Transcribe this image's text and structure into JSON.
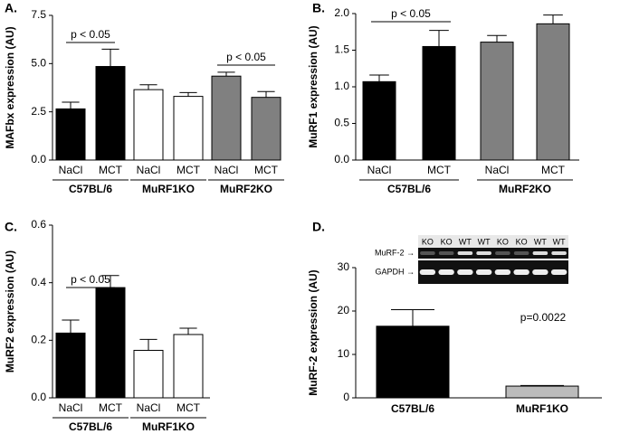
{
  "chart_data": [
    {
      "type": "bar",
      "title": "A.",
      "ylabel": "MAFbx expression (AU)",
      "ylim": [
        0,
        7.5
      ],
      "yticks": [
        {
          "value": 0,
          "label": "0.0"
        },
        2.5,
        {
          "value": 5,
          "label": "5.0"
        },
        7.5
      ],
      "groups": [
        {
          "name": "C57BL/6",
          "color": "#000000",
          "categories": [
            "NaCl",
            "MCT"
          ],
          "values": [
            2.65,
            4.85
          ],
          "errors": [
            0.35,
            0.9
          ]
        },
        {
          "name": "MuRF1KO",
          "color": "#ffffff",
          "categories": [
            "NaCl",
            "MCT"
          ],
          "values": [
            3.65,
            3.3
          ],
          "errors": [
            0.25,
            0.2
          ]
        },
        {
          "name": "MuRF2KO",
          "color": "#808080",
          "categories": [
            "NaCl",
            "MCT"
          ],
          "values": [
            4.35,
            3.25
          ],
          "errors": [
            0.2,
            0.3
          ]
        }
      ],
      "annotations": [
        "p < 0.05",
        "p < 0.05"
      ]
    },
    {
      "type": "bar",
      "title": "B.",
      "ylabel": "MuRF1 expression (AU)",
      "ylim": [
        0,
        2.0
      ],
      "yticks": [
        {
          "value": 0,
          "label": "0.0"
        },
        0.5,
        {
          "value": 1,
          "label": "1.0"
        },
        1.5,
        {
          "value": 2,
          "label": "2.0"
        }
      ],
      "groups": [
        {
          "name": "C57BL/6",
          "color": "#000000",
          "categories": [
            "NaCl",
            "MCT"
          ],
          "values": [
            1.07,
            1.55
          ],
          "errors": [
            0.09,
            0.22
          ]
        },
        {
          "name": "MuRF2KO",
          "color": "#808080",
          "categories": [
            "NaCl",
            "MCT"
          ],
          "values": [
            1.61,
            1.86
          ],
          "errors": [
            0.09,
            0.12
          ]
        }
      ],
      "annotations": [
        "p < 0.05"
      ]
    },
    {
      "type": "bar",
      "title": "C.",
      "ylabel": "MuRF2  expression (AU)",
      "ylim": [
        0,
        0.6
      ],
      "yticks": [
        {
          "value": 0,
          "label": "0.0"
        },
        0.2,
        0.4,
        0.6
      ],
      "groups": [
        {
          "name": "C57BL/6",
          "color": "#000000",
          "categories": [
            "NaCl",
            "MCT"
          ],
          "values": [
            0.225,
            0.383
          ],
          "errors": [
            0.045,
            0.042
          ]
        },
        {
          "name": "MuRF1KO",
          "color": "#ffffff",
          "categories": [
            "NaCl",
            "MCT"
          ],
          "values": [
            0.165,
            0.22
          ],
          "errors": [
            0.038,
            0.022
          ]
        }
      ],
      "annotations": [
        "p < 0.05"
      ]
    },
    {
      "type": "bar",
      "title": "D.",
      "ylabel": "MuRF-2 expression (AU)",
      "ylim": [
        0,
        30
      ],
      "yticks": [
        0,
        10,
        20,
        30
      ],
      "groups": [
        {
          "name": "C57BL/6",
          "color": "#000000",
          "values": [
            16.5
          ],
          "errors": [
            3.8
          ]
        },
        {
          "name": "MuRF1KO",
          "color": "#bbbbbb",
          "values": [
            2.7
          ],
          "errors": [
            0.15
          ]
        }
      ],
      "annotations": [
        "p=0.0022"
      ],
      "blot": {
        "lanes": [
          "KO",
          "KO",
          "WT",
          "WT",
          "KO",
          "KO",
          "WT",
          "WT"
        ],
        "rows": [
          "MuRF-2 →",
          "GAPDH →"
        ]
      }
    }
  ]
}
